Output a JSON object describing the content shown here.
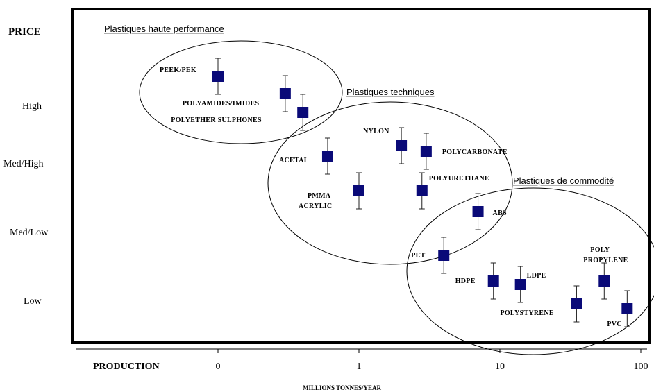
{
  "chart_data": {
    "type": "scatter",
    "y_title": "PRICE",
    "x_title": "PRODUCTION",
    "x_unit": "MILLIONS TONNES/YEAR",
    "x_scale": "log",
    "x_ticks": [
      {
        "label": "0",
        "value": 0.1
      },
      {
        "label": "1",
        "value": 1
      },
      {
        "label": "10",
        "value": 10
      },
      {
        "label": "100",
        "value": 100
      }
    ],
    "y_levels": [
      "High",
      "Med/High",
      "Med/Low",
      "Low"
    ],
    "group_labels": [
      "Plastiques haute performance",
      "Plastiques techniques",
      "Plastiques de commodité"
    ],
    "points": [
      {
        "label": "PEEK/PEK",
        "x": 0.1,
        "y": 3.5
      },
      {
        "label": "POLYAMIDES/IMIDES",
        "x": 0.3,
        "y": 3.25
      },
      {
        "label": "POLYETHER SULPHONES",
        "x": 0.4,
        "y": 2.98
      },
      {
        "label": "ACETAL",
        "x": 0.6,
        "y": 2.35
      },
      {
        "label": "NYLON",
        "x": 2.0,
        "y": 2.5
      },
      {
        "label": "POLYCARBONATE",
        "x": 3.0,
        "y": 2.42
      },
      {
        "label": "PMMA ACRYLIC",
        "x": 1.0,
        "y": 1.85
      },
      {
        "label": "POLYURETHANE",
        "x": 2.8,
        "y": 1.85
      },
      {
        "label": "ABS",
        "x": 7.0,
        "y": 1.55
      },
      {
        "label": "PET",
        "x": 4.0,
        "y": 0.92
      },
      {
        "label": "HDPE",
        "x": 9.0,
        "y": 0.55
      },
      {
        "label": "LDPE",
        "x": 14.0,
        "y": 0.5
      },
      {
        "label": "POLYSTYRENE",
        "x": 35.0,
        "y": 0.22
      },
      {
        "label": "POLY PROPYLENE",
        "x": 55.0,
        "y": 0.55
      },
      {
        "label": "PVC",
        "x": 80.0,
        "y": 0.15
      }
    ],
    "marker_color": "#0a0a78"
  }
}
